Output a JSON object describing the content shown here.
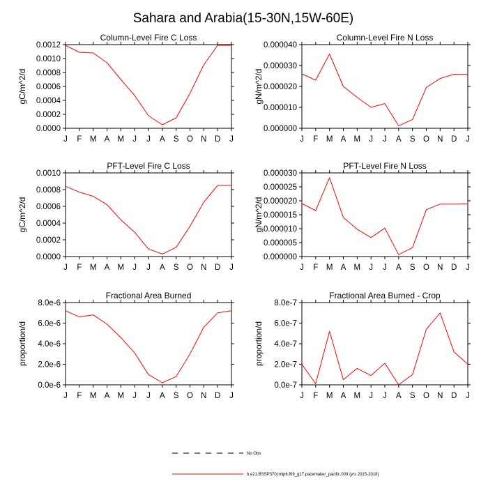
{
  "figure": {
    "title": "Sahara and Arabia(15-30N,15W-60E)",
    "line_color": "#ff0000",
    "legend": [
      {
        "label": "No Obs",
        "style": "dashed",
        "color": "#000000"
      },
      {
        "label": "b.e21.BSSP370cmip6.f09_g17.pacemaker_pacific.009 (yrs 2015-2018)",
        "style": "solid",
        "color": "#ff0000"
      }
    ]
  },
  "chart_data": [
    {
      "type": "line",
      "title": "Column-Level Fire C Loss",
      "ylabel": "gC/m^2/d",
      "ylim": [
        0,
        0.0012
      ],
      "yticks": [
        "0.0000",
        "0.0002",
        "0.0004",
        "0.0006",
        "0.0008",
        "0.0010",
        "0.0012"
      ],
      "categories": [
        "J",
        "F",
        "M",
        "A",
        "M",
        "J",
        "J",
        "A",
        "S",
        "O",
        "N",
        "D",
        "J"
      ],
      "series": [
        {
          "name": "b.e21.BSSP370cmip6.f09_g17.pacemaker_pacific.009 (yrs 2015-2018)",
          "values": [
            0.00119,
            0.00109,
            0.00108,
            0.00094,
            0.0007,
            0.00047,
            0.00018,
            5e-05,
            0.00015,
            0.0005,
            0.00091,
            0.00119,
            0.00119
          ]
        }
      ]
    },
    {
      "type": "line",
      "title": "Column-Level Fire N Loss",
      "ylabel": "gN/m^2/d",
      "ylim": [
        0,
        4e-05
      ],
      "yticks": [
        "0.000000",
        "0.000010",
        "0.000020",
        "0.000030",
        "0.000040"
      ],
      "categories": [
        "J",
        "F",
        "M",
        "A",
        "M",
        "J",
        "J",
        "A",
        "S",
        "O",
        "N",
        "D",
        "J"
      ],
      "series": [
        {
          "name": "b.e21.BSSP370cmip6.f09_g17.pacemaker_pacific.009 (yrs 2015-2018)",
          "values": [
            2.6e-05,
            2.3e-05,
            3.55e-05,
            2e-05,
            1.48e-05,
            1e-05,
            1.18e-05,
            1.2e-06,
            4.2e-06,
            1.95e-05,
            2.38e-05,
            2.58e-05,
            2.58e-05
          ]
        }
      ]
    },
    {
      "type": "line",
      "title": "PFT-Level Fire C Loss",
      "ylabel": "gC/m^2/d",
      "ylim": [
        0,
        0.001
      ],
      "yticks": [
        "0.0000",
        "0.0002",
        "0.0004",
        "0.0006",
        "0.0008",
        "0.0010"
      ],
      "categories": [
        "J",
        "F",
        "M",
        "A",
        "M",
        "J",
        "J",
        "A",
        "S",
        "O",
        "N",
        "D",
        "J"
      ],
      "series": [
        {
          "name": "b.e21.BSSP370cmip6.f09_g17.pacemaker_pacific.009 (yrs 2015-2018)",
          "values": [
            0.00084,
            0.00077,
            0.00072,
            0.00062,
            0.00044,
            0.00029,
            9e-05,
            3e-05,
            0.00011,
            0.00036,
            0.00065,
            0.00085,
            0.00085
          ]
        }
      ]
    },
    {
      "type": "line",
      "title": "PFT-Level Fire N Loss",
      "ylabel": "gN/m^2/d",
      "ylim": [
        0,
        3e-05
      ],
      "yticks": [
        "0.000000",
        "0.000005",
        "0.000010",
        "0.000015",
        "0.000020",
        "0.000025",
        "0.000030"
      ],
      "categories": [
        "J",
        "F",
        "M",
        "A",
        "M",
        "J",
        "J",
        "A",
        "S",
        "O",
        "N",
        "D",
        "J"
      ],
      "series": [
        {
          "name": "b.e21.BSSP370cmip6.f09_g17.pacemaker_pacific.009 (yrs 2015-2018)",
          "values": [
            1.9e-05,
            1.65e-05,
            2.83e-05,
            1.4e-05,
            9.8e-06,
            6.8e-06,
            1.02e-05,
            7e-07,
            3.2e-06,
            1.68e-05,
            1.88e-05,
            1.88e-05,
            1.89e-05
          ]
        }
      ]
    },
    {
      "type": "line",
      "title": "Fractional Area Burned",
      "ylabel": "proportion/d",
      "ylim": [
        0,
        8e-06
      ],
      "yticks": [
        "0.0e-6",
        "2.0e-6",
        "4.0e-6",
        "6.0e-6",
        "8.0e-6"
      ],
      "categories": [
        "J",
        "F",
        "M",
        "A",
        "M",
        "J",
        "J",
        "A",
        "S",
        "O",
        "N",
        "D",
        "J"
      ],
      "series": [
        {
          "name": "b.e21.BSSP370cmip6.f09_g17.pacemaker_pacific.009 (yrs 2015-2018)",
          "values": [
            7.2e-06,
            6.6e-06,
            6.8e-06,
            5.9e-06,
            4.6e-06,
            3.1e-06,
            1e-06,
            2e-07,
            8e-07,
            3e-06,
            5.6e-06,
            7e-06,
            7.2e-06
          ]
        }
      ]
    },
    {
      "type": "line",
      "title": "Fractional Area Burned - Crop",
      "ylabel": "proportion/d",
      "ylim": [
        0,
        8e-07
      ],
      "yticks": [
        "0.0e-7",
        "2.0e-7",
        "4.0e-7",
        "6.0e-7",
        "8.0e-7"
      ],
      "categories": [
        "J",
        "F",
        "M",
        "A",
        "M",
        "J",
        "J",
        "A",
        "S",
        "O",
        "N",
        "D",
        "J"
      ],
      "series": [
        {
          "name": "b.e21.BSSP370cmip6.f09_g17.pacemaker_pacific.009 (yrs 2015-2018)",
          "values": [
            2e-07,
            1e-08,
            5.2e-07,
            5e-08,
            1.6e-07,
            9e-08,
            2.1e-07,
            0.0,
            1e-07,
            5.4e-07,
            7e-07,
            3.2e-07,
            2e-07
          ]
        }
      ]
    }
  ]
}
